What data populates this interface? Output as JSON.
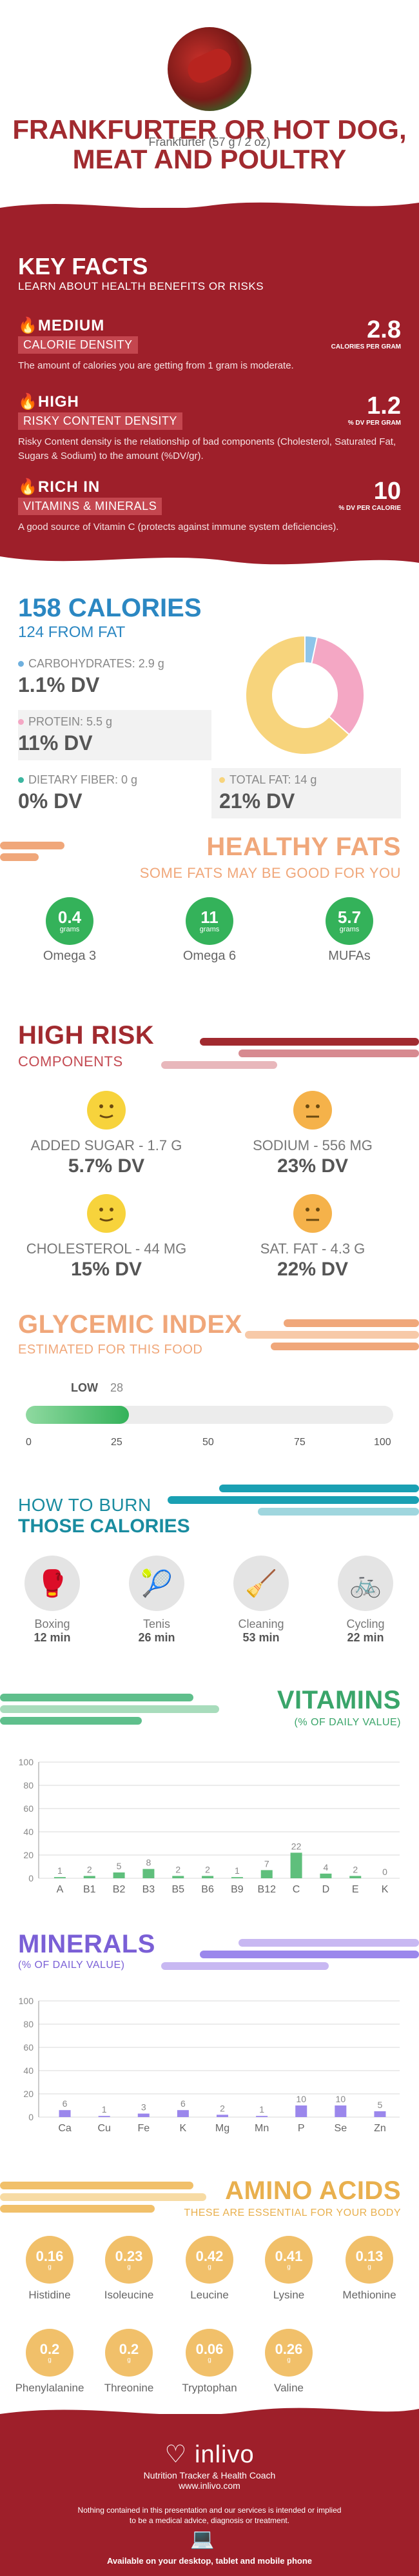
{
  "header": {
    "title": "FRANKFURTER OR HOT DOG, MEAT AND POULTRY",
    "serving": "Frankfurter (57 g / 2 oz)"
  },
  "key_facts": {
    "title": "KEY FACTS",
    "subtitle": "LEARN ABOUT HEALTH BENEFITS OR RISKS",
    "facts": [
      {
        "level": "MEDIUM",
        "name": "CALORIE DENSITY",
        "value": "2.8",
        "unit": "CALORIES PER GRAM",
        "desc": "The amount of calories you are getting from 1 gram is moderate."
      },
      {
        "level": "HIGH",
        "name": "RISKY CONTENT DENSITY",
        "value": "1.2",
        "unit": "% DV PER GRAM",
        "desc": "Risky Content density is the relationship of bad components (Cholesterol, Saturated Fat, Sugars & Sodium) to the amount (%DV/gr)."
      },
      {
        "level": "RICH  IN",
        "name": "VITAMINS & MINERALS",
        "value": "10",
        "unit": "% DV PER CALORIE",
        "desc": "A good source of Vitamin C (protects against immune system deficiencies)."
      }
    ]
  },
  "calories": {
    "title": "158 CALORIES",
    "from_fat": "124 FROM FAT",
    "nutrients": [
      {
        "label": "CARBOHYDRATES: 2.9 g",
        "dv": "1.1% DV",
        "color": "#6fb0de"
      },
      {
        "label": "PROTEIN: 5.5 g",
        "dv": "11% DV",
        "color": "#f4a7c4"
      },
      {
        "label": "DIETARY FIBER: 0 g",
        "dv": "0% DV",
        "color": "#3cb6a0"
      },
      {
        "label": "TOTAL FAT: 14 g",
        "dv": "21% DV",
        "color": "#f7d47c"
      }
    ],
    "donut": [
      {
        "name": "carbohydrates",
        "value": 1.1,
        "color": "#8ec5ea"
      },
      {
        "name": "protein",
        "value": 11,
        "color": "#f4a7c4"
      },
      {
        "name": "fat",
        "value": 21,
        "color": "#f7d47c"
      }
    ]
  },
  "healthy_fats": {
    "title": "HEALTHY FATS",
    "subtitle": "SOME FATS MAY BE GOOD FOR YOU",
    "items": [
      {
        "value": "0.4",
        "unit": "grams",
        "name": "Omega 3"
      },
      {
        "value": "11",
        "unit": "grams",
        "name": "Omega 6"
      },
      {
        "value": "5.7",
        "unit": "grams",
        "name": "MUFAs"
      }
    ]
  },
  "high_risk": {
    "title": "HIGH RISK",
    "subtitle": "COMPONENTS",
    "items": [
      {
        "label": "ADDED SUGAR - 1.7 g",
        "dv": "5.7% DV",
        "color": "#f7d33c"
      },
      {
        "label": "SODIUM - 556 mg",
        "dv": "23% DV",
        "color": "#f5b24a"
      },
      {
        "label": "CHOLESTEROL - 44 mg",
        "dv": "15% DV",
        "color": "#f7d33c"
      },
      {
        "label": "SAT. FAT - 4.3 g",
        "dv": "22% DV",
        "color": "#f5b24a"
      }
    ]
  },
  "glycemic": {
    "title": "GLYCEMIC INDEX",
    "subtitle": "ESTIMATED FOR THIS FOOD",
    "level": "LOW",
    "value": "28",
    "fill_fraction": 0.28,
    "ticks": [
      "0",
      "25",
      "50",
      "75",
      "100"
    ]
  },
  "burn": {
    "title1": "HOW TO BURN",
    "title2": "THOSE CALORIES",
    "activities": [
      {
        "name": "Boxing",
        "minutes": "12 min",
        "icon": "boxing-icon"
      },
      {
        "name": "Tenis",
        "minutes": "26 min",
        "icon": "tennis-icon"
      },
      {
        "name": "Cleaning",
        "minutes": "53 min",
        "icon": "cleaning-icon"
      },
      {
        "name": "Cycling",
        "minutes": "22 min",
        "icon": "cycling-icon"
      }
    ]
  },
  "vitamins": {
    "title": "VITAMINS",
    "subtitle": "(% OF DAILY VALUE)"
  },
  "minerals": {
    "title": "MINERALS",
    "subtitle": "(% OF DAILY VALUE)"
  },
  "chart_data": [
    {
      "type": "bar",
      "categories": [
        "A",
        "B1",
        "B2",
        "B3",
        "B5",
        "B6",
        "B9",
        "B12",
        "C",
        "D",
        "E",
        "K"
      ],
      "values": [
        1,
        2,
        5,
        8,
        2,
        2,
        1,
        7,
        22,
        4,
        2,
        0
      ],
      "ylim": [
        0,
        100
      ],
      "yticks": [
        "0",
        "20",
        "40",
        "60",
        "80",
        "100"
      ],
      "color": "#5fbf7c"
    },
    {
      "type": "bar",
      "categories": [
        "Ca",
        "Cu",
        "Fe",
        "K",
        "Mg",
        "Mn",
        "P",
        "Se",
        "Zn"
      ],
      "values": [
        6,
        1,
        3,
        6,
        2,
        1,
        10,
        10,
        5
      ],
      "ylim": [
        0,
        100
      ],
      "yticks": [
        "0",
        "20",
        "40",
        "60",
        "80",
        "100"
      ],
      "color": "#9b87ec"
    }
  ],
  "amino": {
    "title": "AMINO ACIDS",
    "subtitle": "THESE ARE ESSENTIAL FOR YOUR BODY",
    "items": [
      {
        "value": "0.16",
        "unit": "g",
        "name": "Histidine"
      },
      {
        "value": "0.23",
        "unit": "g",
        "name": "Isoleucine"
      },
      {
        "value": "0.42",
        "unit": "g",
        "name": "Leucine"
      },
      {
        "value": "0.41",
        "unit": "g",
        "name": "Lysine"
      },
      {
        "value": "0.13",
        "unit": "g",
        "name": "Methionine"
      },
      {
        "value": "0.2",
        "unit": "g",
        "name": "Phenylalanine"
      },
      {
        "value": "0.2",
        "unit": "g",
        "name": "Threonine"
      },
      {
        "value": "0.06",
        "unit": "g",
        "name": "Tryptophan"
      },
      {
        "value": "0.26",
        "unit": "g",
        "name": "Valine"
      }
    ]
  },
  "footer": {
    "logo": "inlivo",
    "tagline": "Nutrition Tracker & Health Coach",
    "url": "www.inlivo.com",
    "disclaimer": "Nothing contained in this presentation and our services is intended or implied to be a medical advice, diagnosis or treatment.",
    "availability": "Available on your desktop, tablet and mobile phone"
  }
}
